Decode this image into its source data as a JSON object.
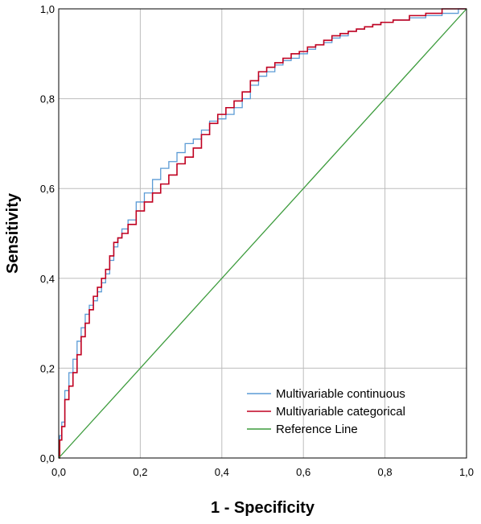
{
  "chart_data": {
    "type": "line",
    "xlabel": "1 - Specificity",
    "ylabel": "Sensitivity",
    "xlim": [
      0,
      1
    ],
    "ylim": [
      0,
      1
    ],
    "x_ticks": [
      "0,0",
      "0,2",
      "0,4",
      "0,6",
      "0,8",
      "1,0"
    ],
    "y_ticks": [
      "0,0",
      "0,2",
      "0,4",
      "0,6",
      "0,8",
      "1,0"
    ],
    "grid": true,
    "legend_position": "bottom-right",
    "series": [
      {
        "name": "Multivariable continuous",
        "color": "#5b9bd5",
        "x": [
          0,
          0.005,
          0.01,
          0.02,
          0.03,
          0.04,
          0.05,
          0.06,
          0.07,
          0.08,
          0.09,
          0.1,
          0.11,
          0.12,
          0.13,
          0.14,
          0.15,
          0.16,
          0.18,
          0.2,
          0.22,
          0.24,
          0.26,
          0.28,
          0.3,
          0.32,
          0.34,
          0.36,
          0.38,
          0.4,
          0.42,
          0.44,
          0.46,
          0.48,
          0.5,
          0.52,
          0.54,
          0.56,
          0.58,
          0.6,
          0.62,
          0.64,
          0.66,
          0.68,
          0.7,
          0.72,
          0.74,
          0.76,
          0.78,
          0.8,
          0.84,
          0.88,
          0.92,
          0.96,
          1.0
        ],
        "y": [
          0,
          0.05,
          0.08,
          0.15,
          0.19,
          0.22,
          0.26,
          0.29,
          0.32,
          0.34,
          0.35,
          0.37,
          0.39,
          0.41,
          0.44,
          0.47,
          0.49,
          0.51,
          0.53,
          0.57,
          0.59,
          0.62,
          0.645,
          0.66,
          0.68,
          0.7,
          0.71,
          0.73,
          0.75,
          0.755,
          0.765,
          0.78,
          0.8,
          0.83,
          0.85,
          0.86,
          0.875,
          0.885,
          0.89,
          0.9,
          0.91,
          0.92,
          0.925,
          0.935,
          0.94,
          0.95,
          0.955,
          0.96,
          0.965,
          0.97,
          0.975,
          0.98,
          0.985,
          0.99,
          1.0
        ]
      },
      {
        "name": "Multivariable categorical",
        "color": "#c00020",
        "x": [
          0,
          0.005,
          0.01,
          0.02,
          0.03,
          0.04,
          0.05,
          0.06,
          0.07,
          0.08,
          0.09,
          0.1,
          0.11,
          0.12,
          0.13,
          0.14,
          0.15,
          0.16,
          0.18,
          0.2,
          0.22,
          0.24,
          0.26,
          0.28,
          0.3,
          0.32,
          0.34,
          0.36,
          0.38,
          0.4,
          0.42,
          0.44,
          0.46,
          0.48,
          0.5,
          0.52,
          0.54,
          0.56,
          0.58,
          0.6,
          0.62,
          0.64,
          0.66,
          0.68,
          0.7,
          0.72,
          0.74,
          0.76,
          0.78,
          0.8,
          0.84,
          0.88,
          0.92,
          0.96,
          1.0
        ],
        "y": [
          0,
          0.04,
          0.07,
          0.13,
          0.16,
          0.19,
          0.23,
          0.27,
          0.3,
          0.33,
          0.36,
          0.38,
          0.4,
          0.42,
          0.45,
          0.48,
          0.49,
          0.5,
          0.52,
          0.55,
          0.57,
          0.59,
          0.61,
          0.63,
          0.655,
          0.67,
          0.69,
          0.72,
          0.745,
          0.765,
          0.78,
          0.795,
          0.815,
          0.84,
          0.86,
          0.87,
          0.88,
          0.89,
          0.9,
          0.905,
          0.915,
          0.92,
          0.93,
          0.94,
          0.945,
          0.95,
          0.955,
          0.96,
          0.965,
          0.97,
          0.975,
          0.985,
          0.99,
          1.0,
          1.0
        ]
      },
      {
        "name": "Reference Line",
        "color": "#3c9b3c",
        "x": [
          0,
          1
        ],
        "y": [
          0,
          1
        ]
      }
    ]
  }
}
